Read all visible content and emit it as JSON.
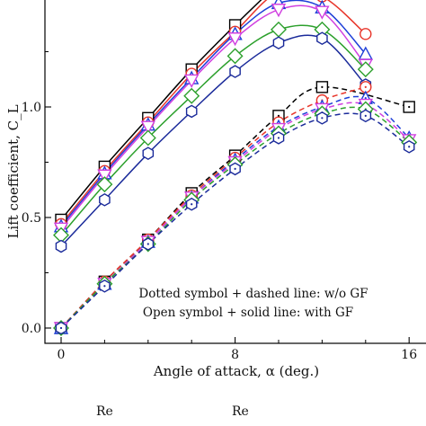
{
  "chart_data": {
    "type": "line",
    "xlabel": "Angle of attack, α (deg.)",
    "ylabel": "Lift coefficient, C_L",
    "xlim": [
      -1,
      16.5
    ],
    "ylim": [
      -0.02,
      1.5
    ],
    "xticks": [
      0,
      8,
      16
    ],
    "xtick_labels": [
      "0",
      "8",
      "16"
    ],
    "yticks": [
      0.0,
      0.5,
      1.0
    ],
    "ytick_labels": [
      "0.0",
      "0.5",
      "1.0"
    ],
    "annotations": [
      "Dotted symbol + dashed line: w/o GF",
      "Open symbol + solid line: with GF"
    ],
    "legend_fragments": [
      "Re",
      "Re"
    ],
    "series": [
      {
        "group": "with GF",
        "color": "#000000",
        "marker": "square",
        "line": "solid",
        "x": [
          0,
          2,
          4,
          6,
          8,
          10
        ],
        "y": [
          0.49,
          0.73,
          0.95,
          1.17,
          1.37,
          1.56
        ]
      },
      {
        "group": "with GF",
        "color": "#e8352a",
        "marker": "circle",
        "line": "solid",
        "x": [
          0,
          2,
          4,
          6,
          8,
          10,
          12,
          14
        ],
        "y": [
          0.47,
          0.71,
          0.93,
          1.15,
          1.34,
          1.52,
          1.5,
          1.33
        ]
      },
      {
        "group": "with GF",
        "color": "#1e3fd8",
        "marker": "triangle-up",
        "line": "solid",
        "x": [
          0,
          2,
          4,
          6,
          8,
          10,
          12,
          14
        ],
        "y": [
          0.46,
          0.7,
          0.92,
          1.13,
          1.33,
          1.47,
          1.45,
          1.24
        ]
      },
      {
        "group": "with GF",
        "color": "#d040e0",
        "marker": "triangle-down",
        "line": "solid",
        "x": [
          0,
          2,
          4,
          6,
          8,
          10,
          12,
          14
        ],
        "y": [
          0.45,
          0.69,
          0.91,
          1.12,
          1.31,
          1.44,
          1.43,
          1.19
        ]
      },
      {
        "group": "with GF",
        "color": "#2ca02c",
        "marker": "diamond",
        "line": "solid",
        "x": [
          0,
          2,
          4,
          6,
          8,
          10,
          12,
          14
        ],
        "y": [
          0.42,
          0.65,
          0.86,
          1.05,
          1.23,
          1.35,
          1.35,
          1.17
        ]
      },
      {
        "group": "with GF",
        "color": "#1a2a9a",
        "marker": "hexagon",
        "line": "solid",
        "x": [
          0,
          2,
          4,
          6,
          8,
          10,
          12,
          14
        ],
        "y": [
          0.37,
          0.58,
          0.79,
          0.98,
          1.16,
          1.29,
          1.31,
          1.1
        ]
      },
      {
        "group": "w/o GF",
        "color": "#000000",
        "marker": "square",
        "line": "dashed",
        "x": [
          0,
          2,
          4,
          6,
          8,
          10,
          12,
          16
        ],
        "y": [
          0.0,
          0.21,
          0.4,
          0.61,
          0.78,
          0.96,
          1.09,
          1.0
        ]
      },
      {
        "group": "w/o GF",
        "color": "#e8352a",
        "marker": "circle",
        "line": "dashed",
        "x": [
          0,
          2,
          4,
          6,
          8,
          10,
          12,
          14
        ],
        "y": [
          0.0,
          0.21,
          0.4,
          0.6,
          0.77,
          0.93,
          1.03,
          1.09
        ]
      },
      {
        "group": "w/o GF",
        "color": "#1e3fd8",
        "marker": "triangle-up",
        "line": "dashed",
        "x": [
          0,
          2,
          4,
          6,
          8,
          10,
          12,
          14,
          16
        ],
        "y": [
          0.0,
          0.2,
          0.39,
          0.59,
          0.76,
          0.91,
          1.0,
          1.04,
          0.86
        ]
      },
      {
        "group": "w/o GF",
        "color": "#d040e0",
        "marker": "triangle-down",
        "line": "dashed",
        "x": [
          0,
          2,
          4,
          6,
          8,
          10,
          12,
          14,
          16
        ],
        "y": [
          0.0,
          0.2,
          0.39,
          0.59,
          0.75,
          0.9,
          0.99,
          1.01,
          0.85
        ]
      },
      {
        "group": "w/o GF",
        "color": "#2ca02c",
        "marker": "diamond",
        "line": "dashed",
        "x": [
          0,
          2,
          4,
          6,
          8,
          10,
          12,
          14,
          16
        ],
        "y": [
          0.0,
          0.2,
          0.38,
          0.58,
          0.74,
          0.88,
          0.97,
          0.99,
          0.84
        ]
      },
      {
        "group": "w/o GF",
        "color": "#1a2a9a",
        "marker": "hexagon",
        "line": "dashed",
        "x": [
          0,
          2,
          4,
          6,
          8,
          10,
          12,
          14,
          16
        ],
        "y": [
          0.0,
          0.19,
          0.38,
          0.56,
          0.72,
          0.86,
          0.95,
          0.96,
          0.82
        ]
      }
    ]
  }
}
